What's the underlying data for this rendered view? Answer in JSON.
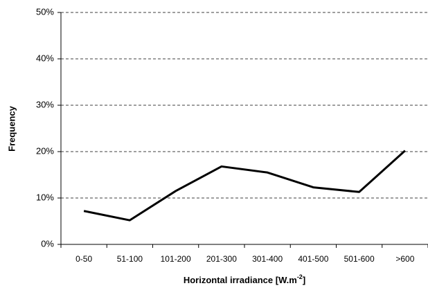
{
  "chart_data": {
    "type": "line",
    "categories": [
      "0-50",
      "51-100",
      "101-200",
      "201-300",
      "301-400",
      "401-500",
      "501-600",
      ">600"
    ],
    "series": [
      {
        "name": "Frequency",
        "color": "#000000",
        "values": [
          7.2,
          5.2,
          11.5,
          16.8,
          15.5,
          12.3,
          11.3,
          20.2
        ]
      }
    ],
    "ylim": [
      0,
      50
    ],
    "yticks": [
      {
        "value": 0,
        "label": "0%"
      },
      {
        "value": 10,
        "label": "10%"
      },
      {
        "value": 20,
        "label": "20%"
      },
      {
        "value": 30,
        "label": "30%"
      },
      {
        "value": 40,
        "label": "40%"
      },
      {
        "value": 50,
        "label": "50%"
      }
    ],
    "y_label": "Frequency",
    "x_label": {
      "text": "Horizontal irradiance [W.m",
      "superscript": "-2",
      "suffix": "]"
    },
    "grid": true
  }
}
